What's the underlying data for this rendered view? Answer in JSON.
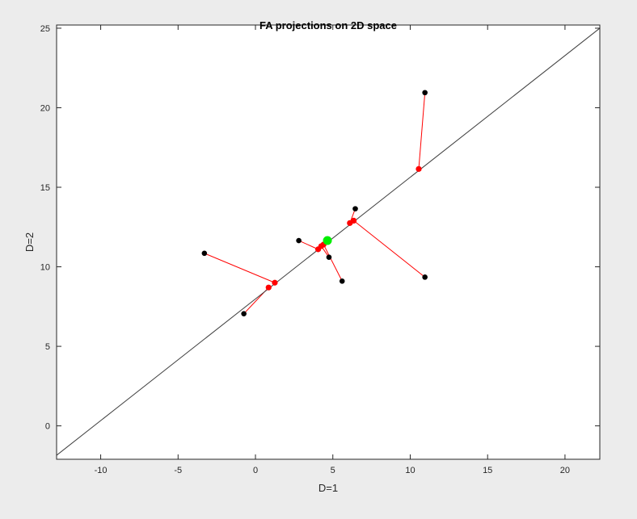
{
  "chart_data": {
    "type": "scatter",
    "title": "FA projections on 2D space",
    "xlabel": "D=1",
    "ylabel": "D=2",
    "xlim": [
      -12.85,
      22.25
    ],
    "ylim": [
      -2.1,
      25.2
    ],
    "xticks": [
      -10,
      -5,
      0,
      5,
      10,
      15,
      20
    ],
    "yticks": [
      0,
      5,
      10,
      15,
      20,
      25
    ],
    "grid": false,
    "line": {
      "from": [
        -12.85,
        -1.85
      ],
      "to": [
        22.25,
        25.0
      ],
      "color": "#404040"
    },
    "points": [
      {
        "x": -3.3,
        "y": 10.85,
        "proj": [
          1.25,
          9.0
        ]
      },
      {
        "x": -0.75,
        "y": 7.05,
        "proj": [
          0.85,
          8.7
        ]
      },
      {
        "x": 2.8,
        "y": 11.65,
        "proj": [
          4.05,
          11.1
        ]
      },
      {
        "x": 4.75,
        "y": 10.6,
        "proj": [
          4.25,
          11.3
        ]
      },
      {
        "x": 5.6,
        "y": 9.1,
        "proj": [
          4.4,
          11.4
        ]
      },
      {
        "x": 6.45,
        "y": 13.65,
        "proj": [
          6.1,
          12.75
        ]
      },
      {
        "x": 10.95,
        "y": 9.35,
        "proj": [
          6.35,
          12.9
        ]
      },
      {
        "x": 10.95,
        "y": 20.95,
        "proj": [
          10.55,
          16.15
        ]
      }
    ],
    "mean": {
      "x": 4.65,
      "y": 11.65
    },
    "colors": {
      "data": "#000000",
      "projection": "#ff0000",
      "mean": "#00ee00"
    }
  }
}
